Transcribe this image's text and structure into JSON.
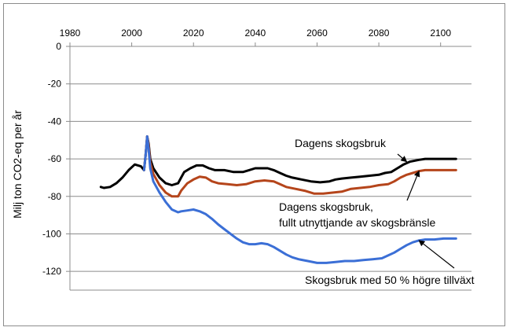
{
  "chart_data": {
    "type": "line",
    "title": "",
    "xlabel": "",
    "ylabel": "Milj ton CO2-eq per år",
    "xlim": [
      1980,
      2110
    ],
    "ylim": [
      -130,
      0
    ],
    "x_ticks": [
      1980,
      2000,
      2020,
      2040,
      2060,
      2080,
      2100
    ],
    "y_ticks": [
      0,
      -20,
      -40,
      -60,
      -80,
      -100,
      -120
    ],
    "grid": "horizontal",
    "x_axis_position": "top",
    "series": [
      {
        "name": "Dagens skogsbruk",
        "color": "#000000",
        "points": [
          [
            1990,
            -75
          ],
          [
            1991,
            -75.5
          ],
          [
            1993,
            -75
          ],
          [
            1995,
            -73
          ],
          [
            1997,
            -70
          ],
          [
            1999,
            -66
          ],
          [
            2001,
            -63
          ],
          [
            2003,
            -64
          ],
          [
            2004,
            -66
          ],
          [
            2004.5,
            -58
          ],
          [
            2005,
            -48
          ],
          [
            2005.5,
            -52
          ],
          [
            2006,
            -60
          ],
          [
            2007,
            -65
          ],
          [
            2009,
            -70
          ],
          [
            2011,
            -73
          ],
          [
            2013,
            -74
          ],
          [
            2015,
            -73
          ],
          [
            2016,
            -70
          ],
          [
            2017,
            -67
          ],
          [
            2019,
            -65
          ],
          [
            2021,
            -63.5
          ],
          [
            2023,
            -63.5
          ],
          [
            2025,
            -65
          ],
          [
            2027,
            -66
          ],
          [
            2030,
            -66
          ],
          [
            2033,
            -67
          ],
          [
            2036,
            -67
          ],
          [
            2038,
            -66
          ],
          [
            2040,
            -65
          ],
          [
            2042,
            -65
          ],
          [
            2044,
            -65
          ],
          [
            2046,
            -66
          ],
          [
            2048,
            -67.5
          ],
          [
            2050,
            -69
          ],
          [
            2052,
            -70
          ],
          [
            2055,
            -71
          ],
          [
            2058,
            -72
          ],
          [
            2061,
            -72.5
          ],
          [
            2064,
            -72
          ],
          [
            2066,
            -71
          ],
          [
            2068,
            -70.5
          ],
          [
            2071,
            -70
          ],
          [
            2074,
            -69.5
          ],
          [
            2077,
            -69
          ],
          [
            2080,
            -68.5
          ],
          [
            2082,
            -67.5
          ],
          [
            2084,
            -67
          ],
          [
            2086,
            -65
          ],
          [
            2088,
            -63
          ],
          [
            2090,
            -61.5
          ],
          [
            2093,
            -60.5
          ],
          [
            2095,
            -60
          ],
          [
            2098,
            -60
          ],
          [
            2100,
            -60
          ],
          [
            2102,
            -60
          ],
          [
            2105,
            -60
          ]
        ]
      },
      {
        "name": "Dagens skogsbruk, fullt utnyttjande av skogsbränsle",
        "color": "#b5451b",
        "points": [
          [
            2004,
            -66
          ],
          [
            2004.5,
            -58
          ],
          [
            2005,
            -48
          ],
          [
            2005.5,
            -53
          ],
          [
            2006,
            -62
          ],
          [
            2007,
            -68
          ],
          [
            2009,
            -74
          ],
          [
            2011,
            -78
          ],
          [
            2013,
            -80
          ],
          [
            2015,
            -80
          ],
          [
            2016,
            -77
          ],
          [
            2018,
            -73
          ],
          [
            2020,
            -71
          ],
          [
            2022,
            -69.5
          ],
          [
            2024,
            -70
          ],
          [
            2026,
            -72
          ],
          [
            2028,
            -73
          ],
          [
            2031,
            -73.5
          ],
          [
            2034,
            -74
          ],
          [
            2037,
            -73.5
          ],
          [
            2040,
            -72
          ],
          [
            2043,
            -71.5
          ],
          [
            2046,
            -72
          ],
          [
            2048,
            -73.5
          ],
          [
            2050,
            -75
          ],
          [
            2053,
            -76
          ],
          [
            2056,
            -77
          ],
          [
            2059,
            -78.5
          ],
          [
            2062,
            -78.5
          ],
          [
            2065,
            -78
          ],
          [
            2068,
            -77.5
          ],
          [
            2071,
            -76
          ],
          [
            2074,
            -75.5
          ],
          [
            2077,
            -75
          ],
          [
            2080,
            -74
          ],
          [
            2083,
            -73.5
          ],
          [
            2085,
            -72
          ],
          [
            2087,
            -70
          ],
          [
            2089,
            -68.5
          ],
          [
            2091,
            -67.5
          ],
          [
            2093,
            -66.5
          ],
          [
            2095,
            -66
          ],
          [
            2097,
            -66
          ],
          [
            2100,
            -66
          ],
          [
            2102,
            -66
          ],
          [
            2105,
            -66
          ]
        ]
      },
      {
        "name": "Skogsbruk med 50 % högre tillväxt",
        "color": "#3b6fd6",
        "points": [
          [
            2004,
            -66
          ],
          [
            2004.5,
            -58
          ],
          [
            2005,
            -48
          ],
          [
            2005.5,
            -55
          ],
          [
            2006,
            -65
          ],
          [
            2007,
            -72
          ],
          [
            2009,
            -78
          ],
          [
            2011,
            -83
          ],
          [
            2013,
            -87
          ],
          [
            2015,
            -88.5
          ],
          [
            2016,
            -88
          ],
          [
            2018,
            -87.5
          ],
          [
            2020,
            -87
          ],
          [
            2022,
            -88
          ],
          [
            2024,
            -89.5
          ],
          [
            2026,
            -92
          ],
          [
            2028,
            -95
          ],
          [
            2030,
            -97.5
          ],
          [
            2032,
            -100
          ],
          [
            2034,
            -102.5
          ],
          [
            2036,
            -104.5
          ],
          [
            2038,
            -105.5
          ],
          [
            2040,
            -105.5
          ],
          [
            2042,
            -105
          ],
          [
            2044,
            -105.5
          ],
          [
            2046,
            -107
          ],
          [
            2048,
            -109
          ],
          [
            2050,
            -111
          ],
          [
            2052,
            -112.5
          ],
          [
            2054,
            -113.5
          ],
          [
            2057,
            -114.5
          ],
          [
            2060,
            -115.5
          ],
          [
            2063,
            -115.5
          ],
          [
            2066,
            -115
          ],
          [
            2069,
            -114.5
          ],
          [
            2072,
            -114.5
          ],
          [
            2075,
            -114
          ],
          [
            2078,
            -113.5
          ],
          [
            2081,
            -113
          ],
          [
            2083,
            -111.5
          ],
          [
            2085,
            -110
          ],
          [
            2087,
            -108
          ],
          [
            2089,
            -106
          ],
          [
            2091,
            -104.5
          ],
          [
            2093,
            -103.5
          ],
          [
            2095,
            -103
          ],
          [
            2098,
            -103
          ],
          [
            2101,
            -102.5
          ],
          [
            2105,
            -102.5
          ]
        ]
      }
    ],
    "annotations": [
      {
        "lines": [
          "Dagens skogsbruk"
        ],
        "arrow_to": [
          2089,
          -61.5
        ]
      },
      {
        "lines": [
          "Dagens skogsbruk,",
          "fullt utnyttjande av skogsbränsle"
        ],
        "arrow_to": [
          2093,
          -66.5
        ]
      },
      {
        "lines": [
          "Skogsbruk med 50 % högre tillväxt"
        ],
        "arrow_to": [
          2093,
          -103.5
        ]
      }
    ]
  }
}
